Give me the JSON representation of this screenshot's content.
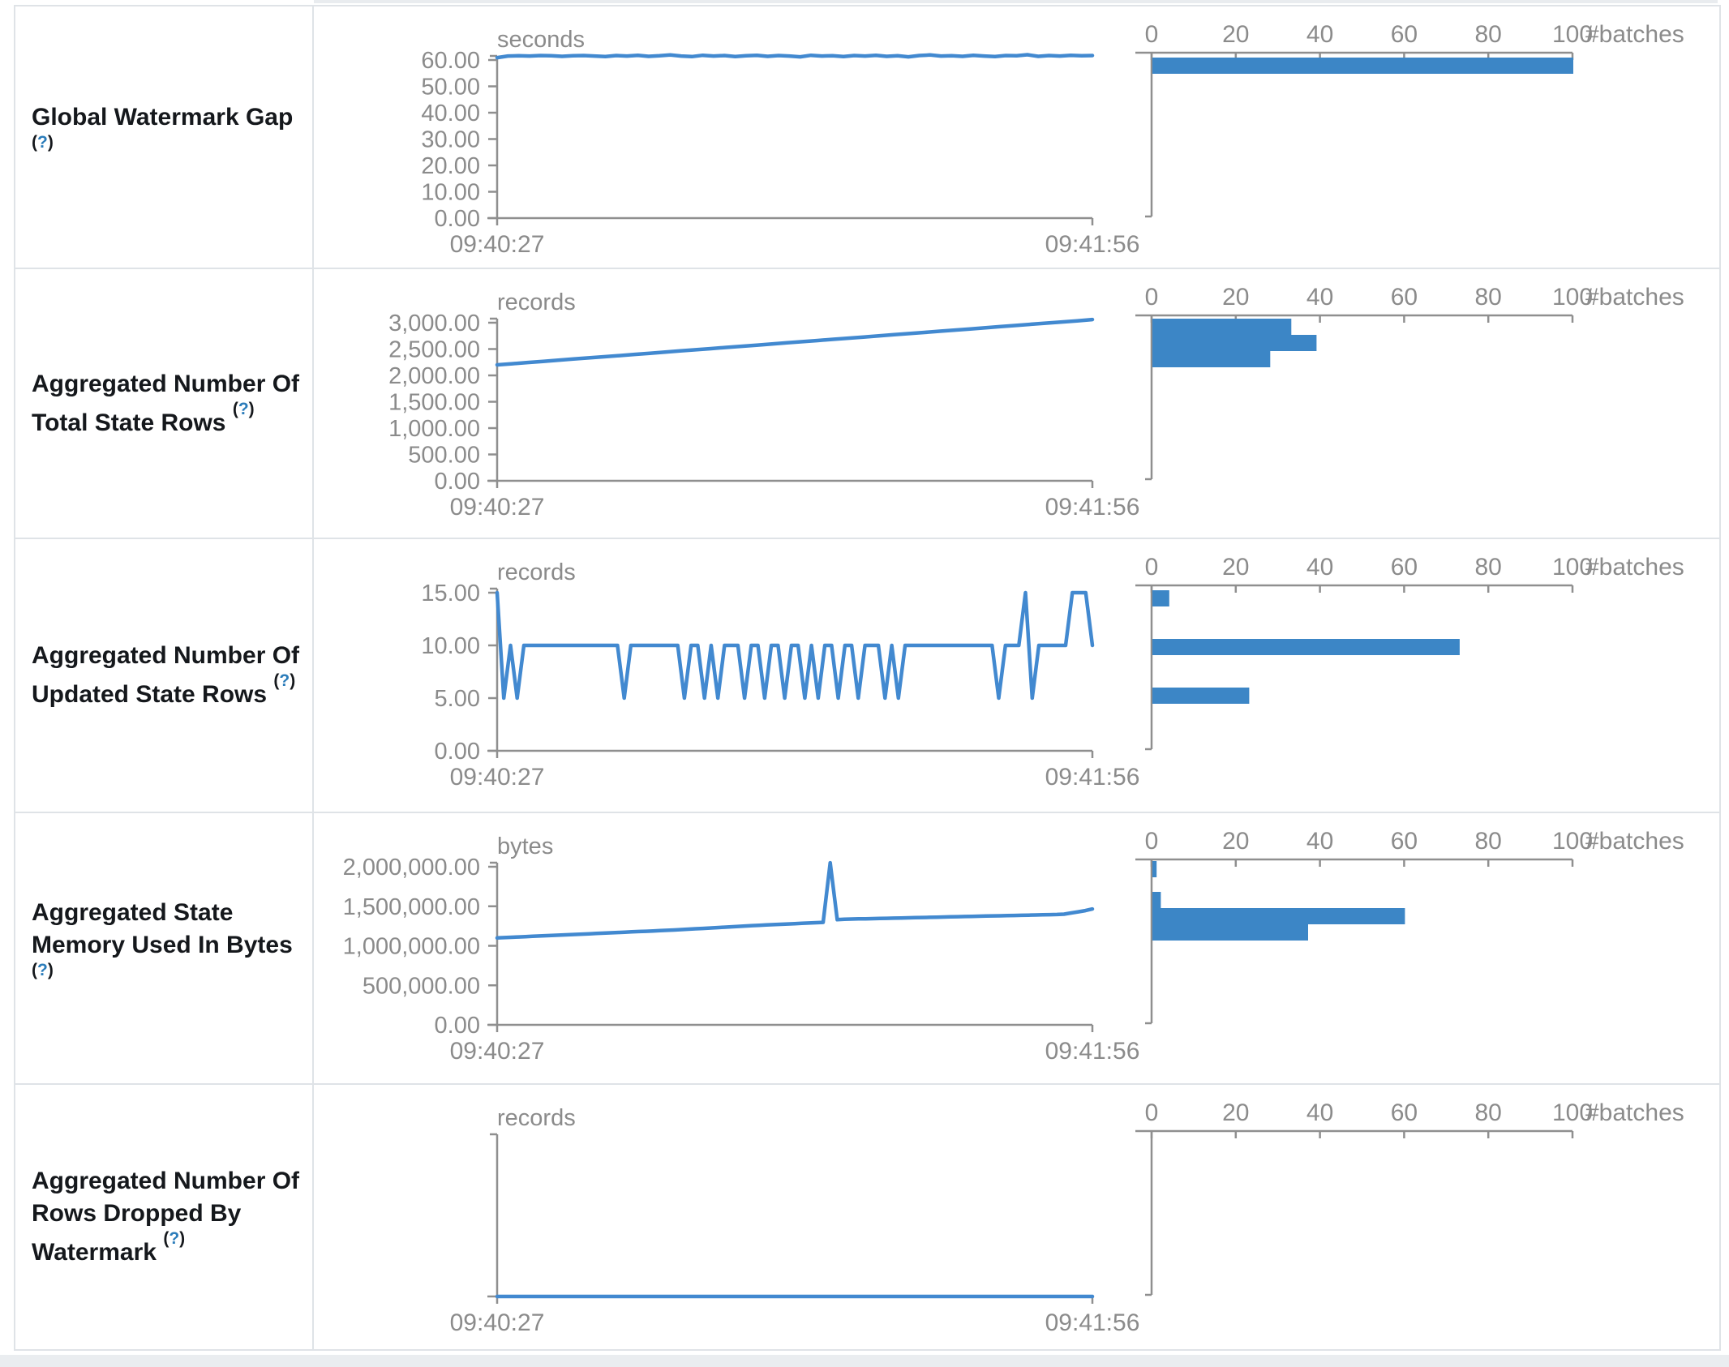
{
  "colors": {
    "line_blue": "#4289d0",
    "bar_blue": "#3c86c6",
    "axis_gray": "#8f8f8f",
    "text_gray": "#8b8b8b",
    "label_dark": "#15181c",
    "help_blue": "#2b7cba",
    "border_gray": "#dfe3e7"
  },
  "help_marker": {
    "open": "(",
    "question": "?",
    "close": ")"
  },
  "chart_data": {
    "type": "table-of-charts",
    "rows": [
      {
        "label": "Global Watermark Gap",
        "timeline": {
          "type": "line",
          "unit": "seconds",
          "ytick_labels": [
            "60.00",
            "50.00",
            "40.00",
            "30.00",
            "20.00",
            "10.00",
            "0.00"
          ],
          "ymax_top": 60,
          "x_start": "09:40:27",
          "x_end": "09:41:56",
          "values": [
            60.9,
            61.5,
            61.6,
            61.5,
            61.7,
            61.6,
            61.4,
            61.6,
            61.7,
            61.5,
            61.3,
            61.7,
            61.5,
            61.8,
            61.4,
            61.6,
            61.9,
            61.5,
            61.3,
            61.8,
            61.5,
            61.7,
            61.3,
            61.6,
            61.8,
            61.4,
            61.7,
            61.5,
            61.2,
            61.8,
            61.5,
            61.6,
            61.3,
            61.7,
            61.5,
            61.8,
            61.4,
            61.6,
            61.2,
            61.7,
            61.9,
            61.5,
            61.6,
            61.4,
            61.8,
            61.5,
            61.3,
            61.7,
            61.6,
            62.0,
            61.4,
            61.7,
            61.5,
            61.8,
            61.6,
            61.7
          ]
        },
        "histogram": {
          "type": "bar",
          "tick_labels": [
            "0",
            "20",
            "40",
            "60",
            "80",
            "100"
          ],
          "tick_values": [
            0,
            20,
            40,
            60,
            80,
            100
          ],
          "axis_label": "#batches",
          "bars": [
            {
              "offset": 6,
              "count": 100
            }
          ]
        }
      },
      {
        "label": "Aggregated Number Of Total State Rows",
        "timeline": {
          "type": "line",
          "unit": "records",
          "ytick_labels": [
            "3,000.00",
            "2,500.00",
            "2,000.00",
            "1,500.00",
            "1,000.00",
            "500.00",
            "0.00"
          ],
          "ymax_top": 3000,
          "x_start": "09:40:27",
          "x_end": "09:41:56",
          "values": [
            2200,
            2222,
            2244,
            2266,
            2288,
            2310,
            2332,
            2354,
            2376,
            2398,
            2420,
            2442,
            2464,
            2486,
            2508,
            2530,
            2552,
            2574,
            2596,
            2618,
            2640,
            2662,
            2684,
            2706,
            2728,
            2750,
            2772,
            2794,
            2816,
            2838,
            2860,
            2882,
            2904,
            2926,
            2948,
            2970,
            2992,
            3014,
            3036,
            3060
          ]
        },
        "histogram": {
          "type": "bar",
          "tick_labels": [
            "0",
            "20",
            "40",
            "60",
            "80",
            "100"
          ],
          "tick_values": [
            0,
            20,
            40,
            60,
            80,
            100
          ],
          "axis_label": "#batches",
          "bars": [
            {
              "offset": 4,
              "count": 33
            },
            {
              "offset": 24,
              "count": 39
            },
            {
              "offset": 44,
              "count": 28
            }
          ]
        }
      },
      {
        "label": "Aggregated Number Of Updated State Rows",
        "timeline": {
          "type": "line",
          "unit": "records",
          "ytick_labels": [
            "15.00",
            "10.00",
            "5.00",
            "0.00"
          ],
          "ymax_top": 15,
          "x_start": "09:40:27",
          "x_end": "09:41:56",
          "values": [
            15,
            5,
            10,
            5,
            10,
            10,
            10,
            10,
            10,
            10,
            10,
            10,
            10,
            10,
            10,
            10,
            10,
            10,
            10,
            5,
            10,
            10,
            10,
            10,
            10,
            10,
            10,
            10,
            5,
            10,
            10,
            5,
            10,
            5,
            10,
            10,
            10,
            5,
            10,
            10,
            5,
            10,
            10,
            5,
            10,
            10,
            5,
            10,
            5,
            10,
            10,
            5,
            10,
            10,
            5,
            10,
            10,
            10,
            5,
            10,
            5,
            10,
            10,
            10,
            10,
            10,
            10,
            10,
            10,
            10,
            10,
            10,
            10,
            10,
            10,
            5,
            10,
            10,
            10,
            15,
            5,
            10,
            10,
            10,
            10,
            10,
            15,
            15,
            15,
            10
          ]
        },
        "histogram": {
          "type": "bar",
          "tick_labels": [
            "0",
            "20",
            "40",
            "60",
            "80",
            "100"
          ],
          "tick_values": [
            0,
            20,
            40,
            60,
            80,
            100
          ],
          "axis_label": "#batches",
          "bars": [
            {
              "offset": 6,
              "count": 4
            },
            {
              "offset": 66,
              "count": 73
            },
            {
              "offset": 126,
              "count": 23
            }
          ]
        }
      },
      {
        "label": "Aggregated State Memory Used In Bytes",
        "timeline": {
          "type": "line",
          "unit": "bytes",
          "ytick_labels": [
            "2,000,000.00",
            "1,500,000.00",
            "1,000,000.00",
            "500,000.00",
            "0.00"
          ],
          "ymax_top": 2000000,
          "x_start": "09:40:27",
          "x_end": "09:41:56",
          "values": [
            1100000,
            1104000,
            1108000,
            1112000,
            1116000,
            1120000,
            1124000,
            1128000,
            1132000,
            1136000,
            1140000,
            1144000,
            1148000,
            1152000,
            1156000,
            1160000,
            1164000,
            1168000,
            1172000,
            1176000,
            1180000,
            1184000,
            1188000,
            1192000,
            1196000,
            1200000,
            1205000,
            1210000,
            1215000,
            1220000,
            1225000,
            1230000,
            1235000,
            1240000,
            1245000,
            1250000,
            1255000,
            1260000,
            1264000,
            1268000,
            1272000,
            1276000,
            1280000,
            1284000,
            1288000,
            1292000,
            1296000,
            2050000,
            1330000,
            1335000,
            1338000,
            1340000,
            1342000,
            1344000,
            1346000,
            1348000,
            1350000,
            1352000,
            1354000,
            1356000,
            1358000,
            1360000,
            1362000,
            1364000,
            1366000,
            1368000,
            1370000,
            1372000,
            1374000,
            1376000,
            1378000,
            1380000,
            1382000,
            1384000,
            1386000,
            1388000,
            1390000,
            1392000,
            1394000,
            1396000,
            1400000,
            1415000,
            1430000,
            1445000,
            1466000
          ]
        },
        "histogram": {
          "type": "bar",
          "tick_labels": [
            "0",
            "20",
            "40",
            "60",
            "80",
            "100"
          ],
          "tick_values": [
            0,
            20,
            40,
            60,
            80,
            100
          ],
          "axis_label": "#batches",
          "bars": [
            {
              "offset": 2,
              "count": 1
            },
            {
              "offset": 40,
              "count": 2
            },
            {
              "offset": 60,
              "count": 60
            },
            {
              "offset": 80,
              "count": 37
            }
          ]
        }
      },
      {
        "label": "Aggregated Number Of Rows Dropped By Watermark",
        "timeline": {
          "type": "line",
          "unit": "records",
          "ytick_labels": [],
          "ymax_top": 1,
          "x_start": "09:40:27",
          "x_end": "09:41:56",
          "values": [
            0,
            0,
            0,
            0,
            0,
            0,
            0,
            0,
            0,
            0,
            0,
            0,
            0,
            0,
            0,
            0,
            0,
            0,
            0,
            0,
            0,
            0,
            0,
            0,
            0,
            0,
            0,
            0,
            0,
            0,
            0,
            0,
            0,
            0,
            0,
            0,
            0,
            0,
            0,
            0,
            0,
            0,
            0,
            0,
            0,
            0,
            0,
            0,
            0,
            0
          ]
        },
        "histogram": {
          "type": "bar",
          "tick_labels": [
            "0",
            "20",
            "40",
            "60",
            "80",
            "100"
          ],
          "tick_values": [
            0,
            20,
            40,
            60,
            80,
            100
          ],
          "axis_label": "#batches",
          "bars": []
        }
      }
    ]
  }
}
